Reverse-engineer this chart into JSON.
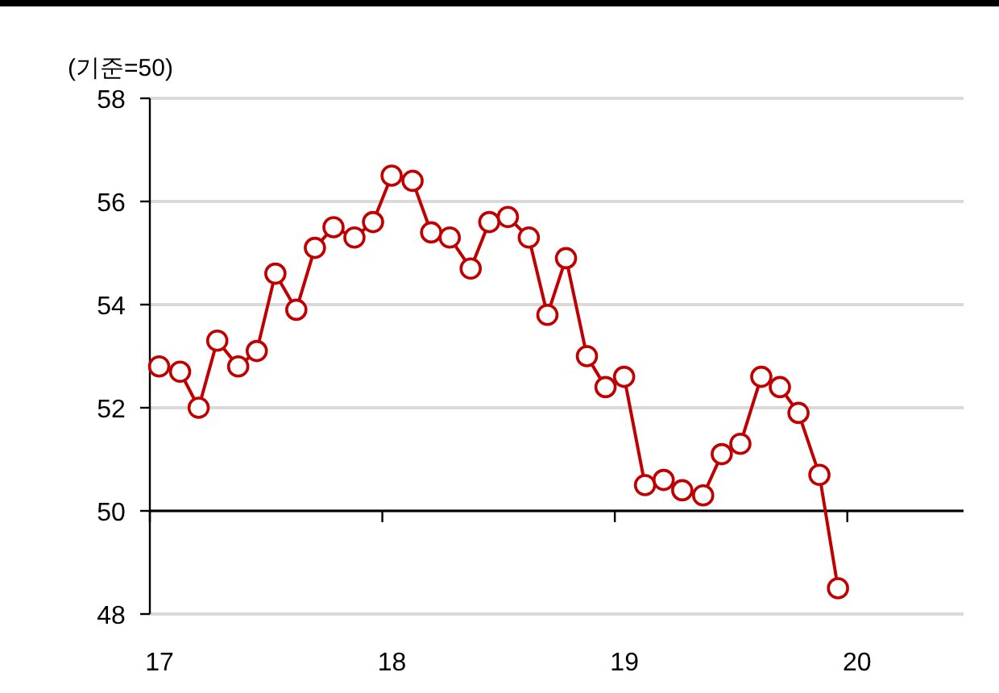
{
  "chart_data": {
    "type": "line",
    "ylabel": "(기준=50)",
    "x": [
      17.04,
      17.13,
      17.21,
      17.29,
      17.38,
      17.46,
      17.54,
      17.63,
      17.71,
      17.79,
      17.88,
      17.96,
      18.04,
      18.13,
      18.21,
      18.29,
      18.38,
      18.46,
      18.54,
      18.63,
      18.71,
      18.79,
      18.88,
      18.96,
      19.04,
      19.13,
      19.21,
      19.29,
      19.38,
      19.46,
      19.54,
      19.63,
      19.71,
      19.79,
      19.88,
      19.96
    ],
    "series": [
      {
        "color": "#c00000",
        "values": [
          52.8,
          52.7,
          52.0,
          53.3,
          52.8,
          53.1,
          54.6,
          53.9,
          55.1,
          55.5,
          55.3,
          55.6,
          56.5,
          56.4,
          55.4,
          55.3,
          54.7,
          55.6,
          55.7,
          55.3,
          53.8,
          54.9,
          53.0,
          52.4,
          52.6,
          50.5,
          50.6,
          50.4,
          50.3,
          51.1,
          51.3,
          52.6,
          52.4,
          51.9,
          50.7,
          48.5
        ]
      }
    ],
    "xlim": [
      17,
      20.5
    ],
    "xticks": [
      17,
      18,
      19,
      20
    ],
    "ylim": [
      48,
      58
    ],
    "yticks": [
      48,
      50,
      52,
      54,
      56,
      58
    ],
    "grid": "y",
    "marker": "circle",
    "line_style": "solid",
    "ref_lines": [
      {
        "axis": "y",
        "value": 50,
        "color": "#000000"
      }
    ]
  }
}
